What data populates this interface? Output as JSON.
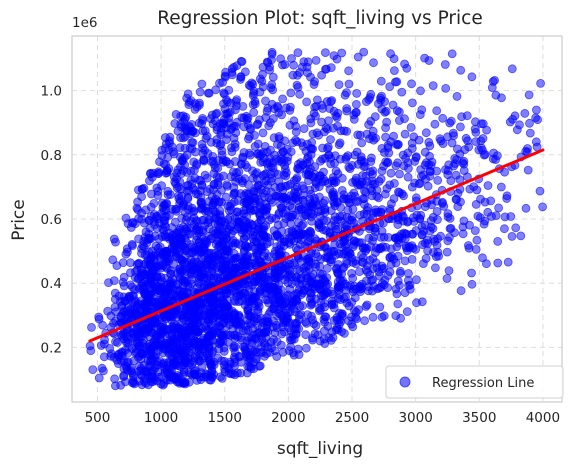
{
  "chart_data": {
    "type": "scatter",
    "title": "Regression Plot: sqft_living vs Price",
    "xlabel": "sqft_living",
    "ylabel": "Price",
    "y_offset_label": "1e6",
    "xlim": [
      300,
      4150
    ],
    "ylim": [
      30000,
      1170000
    ],
    "xticks": [
      500,
      1000,
      1500,
      2000,
      2500,
      3000,
      3500,
      4000
    ],
    "yticks": [
      0.2,
      0.4,
      0.6,
      0.8,
      1.0
    ],
    "ytick_labels": [
      "0.2",
      "0.4",
      "0.6",
      "0.8",
      "1.0"
    ],
    "ytick_multiplier": 1000000,
    "grid": true,
    "grid_style": "dashed",
    "legend": {
      "position": "lower-right",
      "entries": [
        "Regression Line"
      ]
    },
    "scatter_color": "#0000ff",
    "scatter_alpha": 0.5,
    "line_color": "#ff0000",
    "regression_line": {
      "x": [
        440,
        4000
      ],
      "y": [
        220000,
        815000
      ]
    },
    "density_profile": {
      "x_bins": [
        450,
        550,
        650,
        750,
        850,
        950,
        1050,
        1150,
        1250,
        1350,
        1450,
        1550,
        1650,
        1750,
        1850,
        1950,
        2050,
        2150,
        2250,
        2350,
        2450,
        2550,
        2650,
        2750,
        2850,
        2950,
        3050,
        3150,
        3250,
        3350,
        3450,
        3550,
        3650,
        3750,
        3850,
        3950
      ],
      "y_min": [
        80000,
        90000,
        80000,
        80000,
        80000,
        80000,
        80000,
        85000,
        90000,
        95000,
        100000,
        110000,
        120000,
        130000,
        150000,
        160000,
        170000,
        190000,
        200000,
        220000,
        230000,
        240000,
        250000,
        270000,
        290000,
        310000,
        320000,
        340000,
        350000,
        370000,
        390000,
        410000,
        420000,
        440000,
        470000,
        500000
      ],
      "y_max": [
        430000,
        450000,
        540000,
        620000,
        700000,
        800000,
        880000,
        930000,
        1000000,
        1050000,
        1050000,
        1080000,
        1100000,
        1100000,
        1120000,
        1120000,
        1120000,
        1120000,
        1120000,
        1120000,
        1120000,
        1120000,
        1120000,
        1120000,
        1120000,
        1120000,
        1120000,
        1120000,
        1120000,
        1120000,
        1120000,
        1110000,
        1110000,
        1100000,
        1090000,
        1080000
      ],
      "weight": [
        4,
        14,
        45,
        95,
        150,
        190,
        215,
        225,
        225,
        215,
        205,
        195,
        180,
        170,
        155,
        145,
        135,
        125,
        115,
        105,
        95,
        85,
        75,
        66,
        58,
        50,
        44,
        38,
        32,
        28,
        24,
        20,
        17,
        14,
        11,
        9
      ]
    }
  }
}
